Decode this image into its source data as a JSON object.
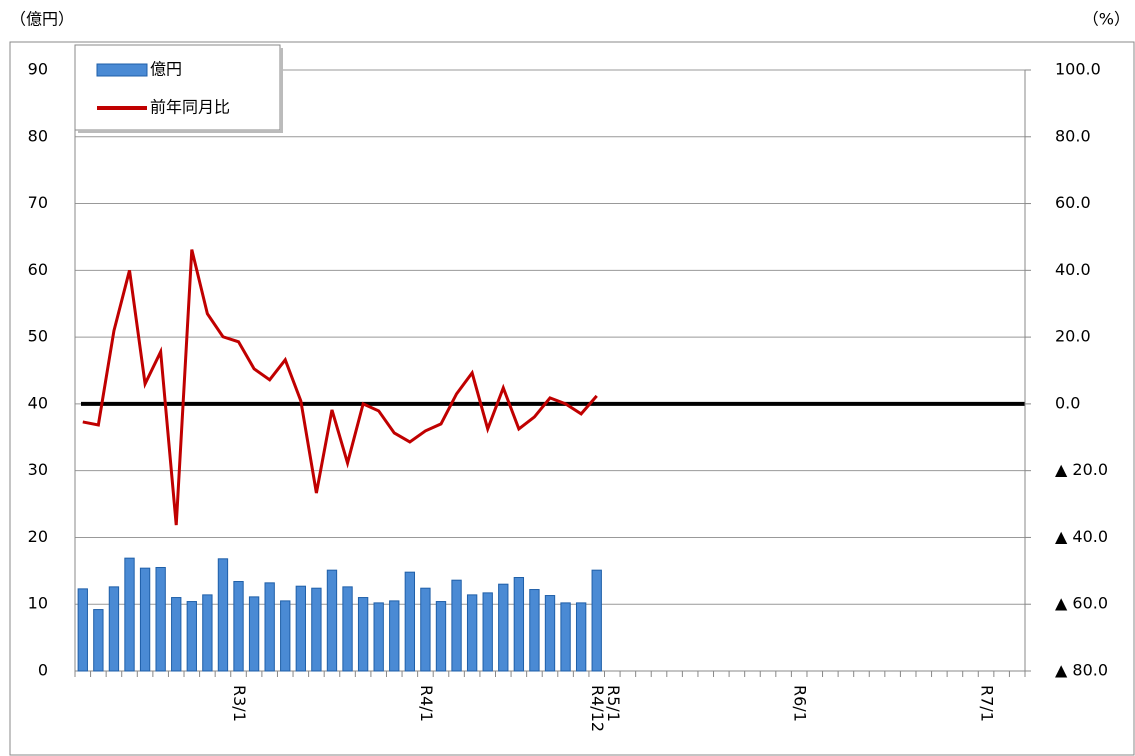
{
  "chart_data": {
    "type": "bar-line",
    "y_label": "（億円）",
    "y2_label": "（%）",
    "categories": [
      null,
      null,
      null,
      null,
      null,
      null,
      null,
      null,
      null,
      null,
      "R3/1",
      null,
      null,
      null,
      null,
      null,
      null,
      null,
      null,
      null,
      null,
      null,
      "R4/1",
      null,
      null,
      null,
      null,
      null,
      null,
      null,
      null,
      null,
      null,
      "R4/12",
      "R5/1",
      null,
      null,
      null,
      null,
      null,
      null,
      null,
      null,
      null,
      null,
      null,
      "R6/1",
      null,
      null,
      null,
      null,
      null,
      null,
      null,
      null,
      null,
      null,
      null,
      "R7/1",
      null,
      null
    ],
    "series": [
      {
        "name": "億円",
        "type": "bar",
        "axis": "y",
        "color": "#4a8ad4",
        "values": [
          12.3,
          9.2,
          12.6,
          16.9,
          15.4,
          15.5,
          11.0,
          10.4,
          11.4,
          16.8,
          13.4,
          11.1,
          13.2,
          10.5,
          12.7,
          12.4,
          15.1,
          12.6,
          11.0,
          10.2,
          10.5,
          14.8,
          12.4,
          10.4,
          13.6,
          11.4,
          11.7,
          13.0,
          14.0,
          12.2,
          11.3,
          10.2,
          10.2,
          15.1,
          null,
          null,
          null,
          null,
          null,
          null,
          null,
          null,
          null,
          null,
          null,
          null,
          null,
          null,
          null,
          null,
          null,
          null,
          null,
          null,
          null,
          null,
          null,
          null,
          null,
          null,
          null
        ]
      },
      {
        "name": "前年同月比",
        "type": "line",
        "axis": "y2",
        "color": "#c00000",
        "values": [
          -5.4,
          -6.3,
          21.9,
          40.0,
          6.0,
          15.6,
          -36.3,
          46.2,
          27.0,
          20.1,
          18.6,
          10.5,
          7.2,
          13.2,
          0.9,
          -26.7,
          -1.8,
          -17.7,
          0.0,
          -2.1,
          -8.7,
          -11.4,
          -8.1,
          -6.0,
          3.0,
          9.3,
          -7.5,
          4.8,
          -7.5,
          -3.9,
          1.8,
          0.0,
          -3.0,
          2.4,
          null,
          null,
          null,
          null,
          null,
          null,
          null,
          null,
          null,
          null,
          null,
          null,
          null,
          null,
          null,
          null,
          null,
          null,
          null,
          null,
          null,
          null,
          null,
          null,
          null,
          null,
          null
        ]
      }
    ],
    "ylim": [
      0,
      90
    ],
    "yticks": [
      0,
      10,
      20,
      30,
      40,
      50,
      60,
      70,
      80,
      90
    ],
    "y2lim": [
      -80,
      100
    ],
    "y2ticks": [
      {
        "value": -80,
        "label": "▲ 80.0"
      },
      {
        "value": -60,
        "label": "▲ 60.0"
      },
      {
        "value": -40,
        "label": "▲ 40.0"
      },
      {
        "value": -20,
        "label": "▲ 20.0"
      },
      {
        "value": 0,
        "label": "0.0"
      },
      {
        "value": 20,
        "label": "20.0"
      },
      {
        "value": 40,
        "label": "40.0"
      },
      {
        "value": 60,
        "label": "60.0"
      },
      {
        "value": 80,
        "label": "80.0"
      },
      {
        "value": 100,
        "label": "100.0"
      }
    ],
    "grid": true,
    "zero_line_color": "#000000",
    "legend": "top-left"
  }
}
